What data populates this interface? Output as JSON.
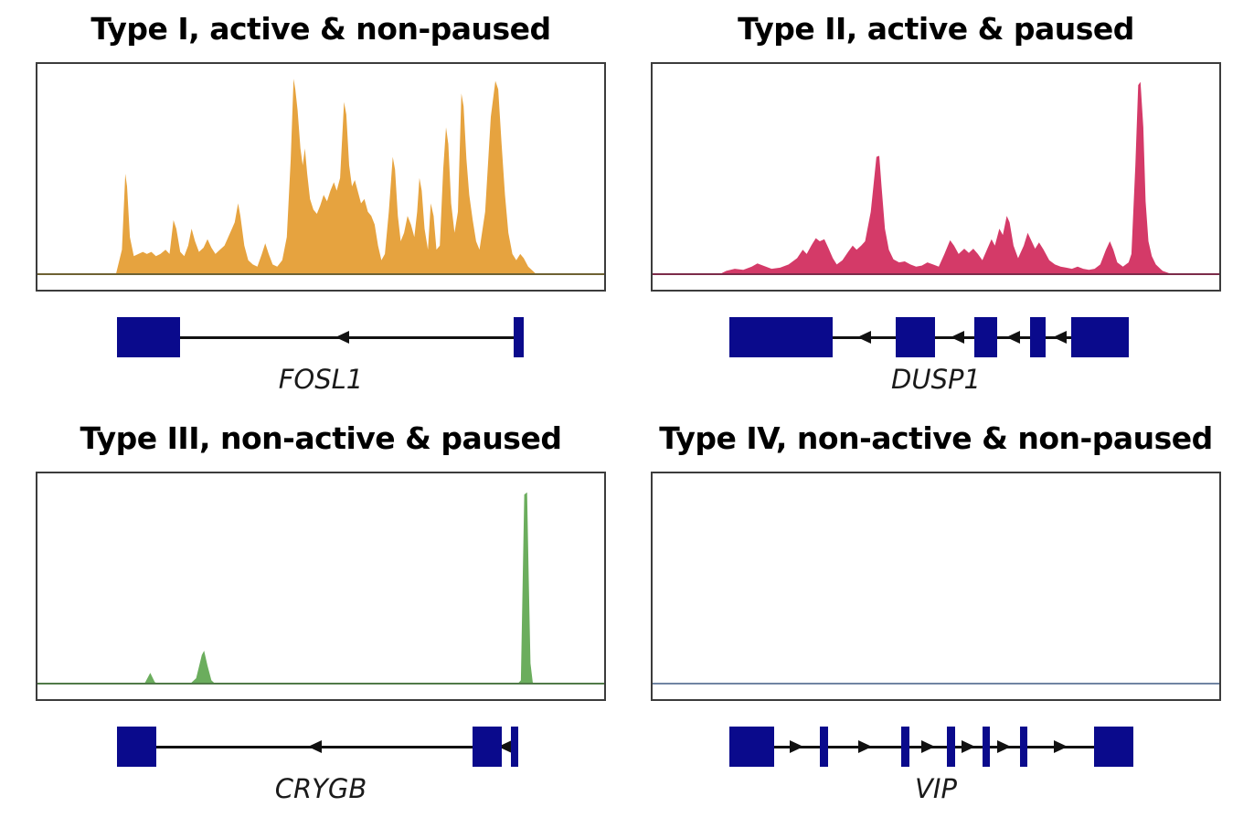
{
  "figure": {
    "colors": {
      "exon_navy": "#0a0a8c",
      "arrow_black": "#111111",
      "plot_border": "#3c3c3c",
      "background": "#ffffff",
      "title_text": "#000000",
      "label_text": "#1a1a1a"
    }
  },
  "chart_data": [
    {
      "type": "area",
      "panel": "top-left",
      "title": "Type I, active & non-paused",
      "fill_color": "#E6A33F",
      "baseline_color": "#6e6233",
      "x_range": [
        0,
        1
      ],
      "y_range": [
        0,
        1
      ],
      "gene": {
        "label": "FOSL1",
        "strand": "left",
        "boxes": [
          {
            "x": 0.143,
            "w": 0.112
          },
          {
            "x": 0.843,
            "w": 0.018
          }
        ],
        "arrows": [
          0.542
        ]
      },
      "signal": [
        [
          0.138,
          0
        ],
        [
          0.149,
          0.12
        ],
        [
          0.155,
          0.48
        ],
        [
          0.158,
          0.42
        ],
        [
          0.163,
          0.18
        ],
        [
          0.17,
          0.09
        ],
        [
          0.178,
          0.1
        ],
        [
          0.186,
          0.11
        ],
        [
          0.193,
          0.1
        ],
        [
          0.201,
          0.11
        ],
        [
          0.209,
          0.09
        ],
        [
          0.217,
          0.1
        ],
        [
          0.226,
          0.12
        ],
        [
          0.233,
          0.1
        ],
        [
          0.24,
          0.26
        ],
        [
          0.245,
          0.22
        ],
        [
          0.252,
          0.11
        ],
        [
          0.259,
          0.09
        ],
        [
          0.266,
          0.14
        ],
        [
          0.272,
          0.22
        ],
        [
          0.278,
          0.16
        ],
        [
          0.285,
          0.11
        ],
        [
          0.293,
          0.13
        ],
        [
          0.3,
          0.17
        ],
        [
          0.307,
          0.13
        ],
        [
          0.314,
          0.1
        ],
        [
          0.322,
          0.12
        ],
        [
          0.33,
          0.14
        ],
        [
          0.34,
          0.2
        ],
        [
          0.348,
          0.25
        ],
        [
          0.354,
          0.34
        ],
        [
          0.358,
          0.28
        ],
        [
          0.365,
          0.14
        ],
        [
          0.372,
          0.07
        ],
        [
          0.38,
          0.05
        ],
        [
          0.388,
          0.04
        ],
        [
          0.396,
          0.1
        ],
        [
          0.402,
          0.15
        ],
        [
          0.408,
          0.1
        ],
        [
          0.415,
          0.05
        ],
        [
          0.423,
          0.04
        ],
        [
          0.432,
          0.07
        ],
        [
          0.44,
          0.18
        ],
        [
          0.447,
          0.55
        ],
        [
          0.452,
          0.93
        ],
        [
          0.455,
          0.88
        ],
        [
          0.459,
          0.78
        ],
        [
          0.464,
          0.6
        ],
        [
          0.468,
          0.52
        ],
        [
          0.472,
          0.6
        ],
        [
          0.476,
          0.48
        ],
        [
          0.481,
          0.36
        ],
        [
          0.487,
          0.31
        ],
        [
          0.493,
          0.29
        ],
        [
          0.499,
          0.33
        ],
        [
          0.505,
          0.38
        ],
        [
          0.511,
          0.35
        ],
        [
          0.517,
          0.4
        ],
        [
          0.523,
          0.44
        ],
        [
          0.528,
          0.4
        ],
        [
          0.534,
          0.46
        ],
        [
          0.541,
          0.82
        ],
        [
          0.545,
          0.76
        ],
        [
          0.55,
          0.52
        ],
        [
          0.555,
          0.42
        ],
        [
          0.56,
          0.45
        ],
        [
          0.565,
          0.4
        ],
        [
          0.571,
          0.34
        ],
        [
          0.577,
          0.36
        ],
        [
          0.583,
          0.3
        ],
        [
          0.589,
          0.28
        ],
        [
          0.595,
          0.24
        ],
        [
          0.601,
          0.14
        ],
        [
          0.607,
          0.07
        ],
        [
          0.613,
          0.1
        ],
        [
          0.62,
          0.3
        ],
        [
          0.627,
          0.56
        ],
        [
          0.631,
          0.5
        ],
        [
          0.636,
          0.28
        ],
        [
          0.641,
          0.16
        ],
        [
          0.647,
          0.2
        ],
        [
          0.653,
          0.28
        ],
        [
          0.659,
          0.24
        ],
        [
          0.665,
          0.18
        ],
        [
          0.67,
          0.3
        ],
        [
          0.674,
          0.46
        ],
        [
          0.678,
          0.4
        ],
        [
          0.683,
          0.22
        ],
        [
          0.689,
          0.12
        ],
        [
          0.694,
          0.34
        ],
        [
          0.699,
          0.28
        ],
        [
          0.704,
          0.12
        ],
        [
          0.71,
          0.14
        ],
        [
          0.716,
          0.5
        ],
        [
          0.721,
          0.7
        ],
        [
          0.725,
          0.62
        ],
        [
          0.73,
          0.34
        ],
        [
          0.736,
          0.2
        ],
        [
          0.742,
          0.3
        ],
        [
          0.748,
          0.86
        ],
        [
          0.752,
          0.8
        ],
        [
          0.757,
          0.55
        ],
        [
          0.762,
          0.38
        ],
        [
          0.768,
          0.26
        ],
        [
          0.774,
          0.16
        ],
        [
          0.78,
          0.12
        ],
        [
          0.79,
          0.3
        ],
        [
          0.8,
          0.75
        ],
        [
          0.808,
          0.92
        ],
        [
          0.813,
          0.88
        ],
        [
          0.819,
          0.62
        ],
        [
          0.825,
          0.38
        ],
        [
          0.831,
          0.2
        ],
        [
          0.838,
          0.1
        ],
        [
          0.845,
          0.07
        ],
        [
          0.852,
          0.1
        ],
        [
          0.858,
          0.08
        ],
        [
          0.866,
          0.04
        ],
        [
          0.874,
          0.02
        ],
        [
          0.882,
          0
        ]
      ]
    },
    {
      "type": "area",
      "panel": "top-right",
      "title": "Type II, active & paused",
      "fill_color": "#D43A68",
      "baseline_color": "#7c2b49",
      "x_range": [
        0,
        1
      ],
      "y_range": [
        0,
        1
      ],
      "gene": {
        "label": "DUSP1",
        "strand": "left",
        "boxes": [
          {
            "x": 0.138,
            "w": 0.183
          },
          {
            "x": 0.433,
            "w": 0.069
          },
          {
            "x": 0.571,
            "w": 0.04
          },
          {
            "x": 0.67,
            "w": 0.027
          },
          {
            "x": 0.742,
            "w": 0.101
          }
        ],
        "arrows": [
          0.377,
          0.542,
          0.641,
          0.723
        ]
      },
      "signal": [
        [
          0.115,
          0
        ],
        [
          0.13,
          0.02
        ],
        [
          0.145,
          0.03
        ],
        [
          0.16,
          0.025
        ],
        [
          0.175,
          0.04
        ],
        [
          0.185,
          0.055
        ],
        [
          0.195,
          0.045
        ],
        [
          0.21,
          0.03
        ],
        [
          0.225,
          0.035
        ],
        [
          0.24,
          0.05
        ],
        [
          0.255,
          0.08
        ],
        [
          0.265,
          0.12
        ],
        [
          0.272,
          0.1
        ],
        [
          0.28,
          0.14
        ],
        [
          0.288,
          0.175
        ],
        [
          0.295,
          0.16
        ],
        [
          0.303,
          0.17
        ],
        [
          0.31,
          0.13
        ],
        [
          0.318,
          0.08
        ],
        [
          0.325,
          0.05
        ],
        [
          0.335,
          0.07
        ],
        [
          0.345,
          0.11
        ],
        [
          0.353,
          0.14
        ],
        [
          0.36,
          0.12
        ],
        [
          0.368,
          0.14
        ],
        [
          0.375,
          0.16
        ],
        [
          0.385,
          0.3
        ],
        [
          0.395,
          0.56
        ],
        [
          0.4,
          0.565
        ],
        [
          0.404,
          0.42
        ],
        [
          0.41,
          0.22
        ],
        [
          0.417,
          0.12
        ],
        [
          0.425,
          0.075
        ],
        [
          0.435,
          0.06
        ],
        [
          0.445,
          0.065
        ],
        [
          0.455,
          0.05
        ],
        [
          0.465,
          0.04
        ],
        [
          0.475,
          0.045
        ],
        [
          0.485,
          0.06
        ],
        [
          0.495,
          0.05
        ],
        [
          0.505,
          0.04
        ],
        [
          0.515,
          0.1
        ],
        [
          0.525,
          0.165
        ],
        [
          0.532,
          0.14
        ],
        [
          0.54,
          0.1
        ],
        [
          0.55,
          0.125
        ],
        [
          0.558,
          0.105
        ],
        [
          0.566,
          0.125
        ],
        [
          0.574,
          0.1
        ],
        [
          0.582,
          0.07
        ],
        [
          0.59,
          0.12
        ],
        [
          0.598,
          0.17
        ],
        [
          0.604,
          0.14
        ],
        [
          0.612,
          0.22
        ],
        [
          0.618,
          0.19
        ],
        [
          0.625,
          0.28
        ],
        [
          0.63,
          0.25
        ],
        [
          0.637,
          0.14
        ],
        [
          0.645,
          0.08
        ],
        [
          0.655,
          0.14
        ],
        [
          0.662,
          0.2
        ],
        [
          0.668,
          0.165
        ],
        [
          0.675,
          0.125
        ],
        [
          0.682,
          0.155
        ],
        [
          0.69,
          0.12
        ],
        [
          0.7,
          0.07
        ],
        [
          0.71,
          0.05
        ],
        [
          0.72,
          0.04
        ],
        [
          0.73,
          0.035
        ],
        [
          0.74,
          0.03
        ],
        [
          0.75,
          0.04
        ],
        [
          0.76,
          0.03
        ],
        [
          0.77,
          0.025
        ],
        [
          0.78,
          0.03
        ],
        [
          0.79,
          0.05
        ],
        [
          0.8,
          0.12
        ],
        [
          0.807,
          0.16
        ],
        [
          0.813,
          0.12
        ],
        [
          0.82,
          0.06
        ],
        [
          0.83,
          0.04
        ],
        [
          0.84,
          0.06
        ],
        [
          0.845,
          0.1
        ],
        [
          0.852,
          0.52
        ],
        [
          0.857,
          0.9
        ],
        [
          0.861,
          0.915
        ],
        [
          0.866,
          0.7
        ],
        [
          0.87,
          0.35
        ],
        [
          0.875,
          0.16
        ],
        [
          0.881,
          0.09
        ],
        [
          0.888,
          0.05
        ],
        [
          0.9,
          0.02
        ],
        [
          0.915,
          0.005
        ],
        [
          0.925,
          0
        ]
      ]
    },
    {
      "type": "area",
      "panel": "bottom-left",
      "title": "Type III, non-active & paused",
      "fill_color": "#6BAD5D",
      "baseline_color": "#507a48",
      "x_range": [
        0,
        1
      ],
      "y_range": [
        0,
        1
      ],
      "gene": {
        "label": "CRYGB",
        "strand": "left",
        "boxes": [
          {
            "x": 0.143,
            "w": 0.07
          },
          {
            "x": 0.771,
            "w": 0.051
          },
          {
            "x": 0.838,
            "w": 0.013
          }
        ],
        "arrows": [
          0.494,
          0.829
        ]
      },
      "signal": [
        [
          0.18,
          0
        ],
        [
          0.19,
          0.01
        ],
        [
          0.199,
          0.055
        ],
        [
          0.207,
          0.012
        ],
        [
          0.214,
          0
        ],
        [
          0.268,
          0
        ],
        [
          0.28,
          0.03
        ],
        [
          0.29,
          0.14
        ],
        [
          0.294,
          0.16
        ],
        [
          0.3,
          0.09
        ],
        [
          0.307,
          0.02
        ],
        [
          0.315,
          0
        ],
        [
          0.838,
          0
        ],
        [
          0.848,
          0.005
        ],
        [
          0.853,
          0.02
        ],
        [
          0.856,
          0.45
        ],
        [
          0.859,
          0.9
        ],
        [
          0.864,
          0.91
        ],
        [
          0.867,
          0.5
        ],
        [
          0.87,
          0.1
        ],
        [
          0.874,
          0.01
        ],
        [
          0.881,
          0
        ]
      ]
    },
    {
      "type": "area",
      "panel": "bottom-right",
      "title": "Type IV, non-active & non-paused",
      "fill_color": "#7084a3",
      "baseline_color": "#7084a3",
      "x_range": [
        0,
        1
      ],
      "y_range": [
        0,
        1
      ],
      "gene": {
        "label": "VIP",
        "strand": "right",
        "boxes": [
          {
            "x": 0.138,
            "w": 0.08
          },
          {
            "x": 0.298,
            "w": 0.015
          },
          {
            "x": 0.442,
            "w": 0.015
          },
          {
            "x": 0.522,
            "w": 0.015
          },
          {
            "x": 0.585,
            "w": 0.013
          },
          {
            "x": 0.651,
            "w": 0.014
          },
          {
            "x": 0.782,
            "w": 0.069
          }
        ],
        "arrows": [
          0.256,
          0.378,
          0.489,
          0.559,
          0.623,
          0.723
        ]
      },
      "signal": []
    }
  ]
}
